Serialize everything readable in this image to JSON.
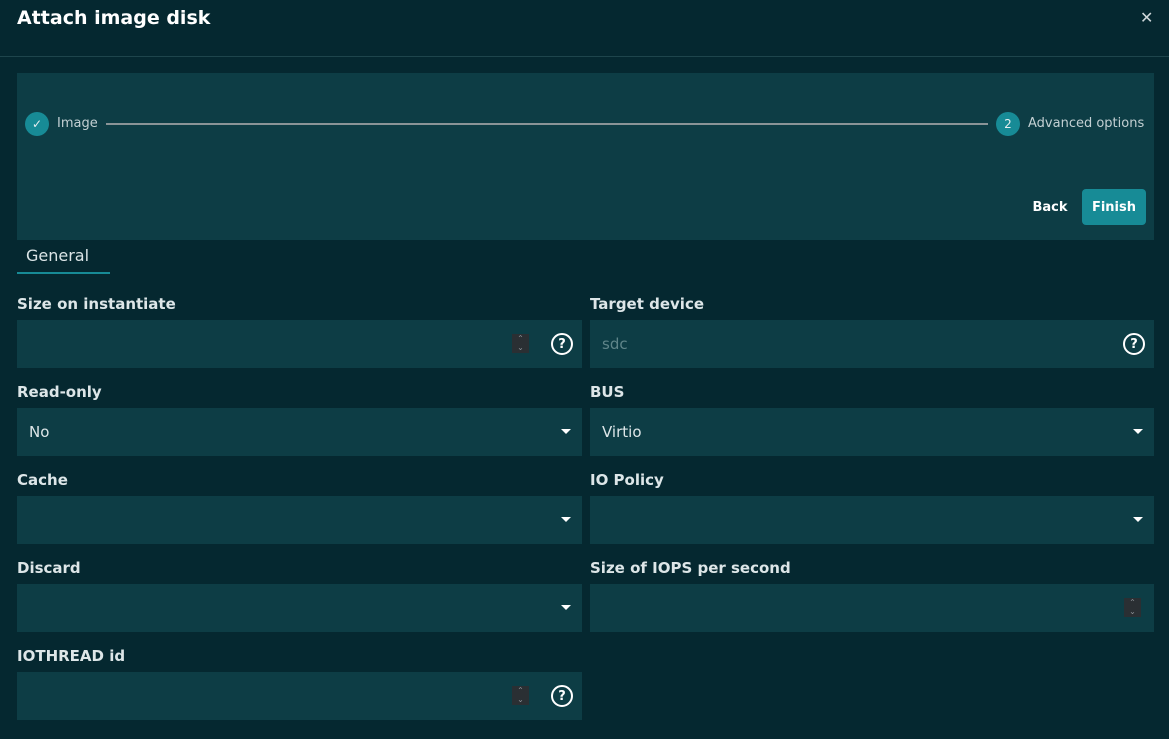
{
  "dialog": {
    "title": "Attach image disk",
    "close_icon": "close-icon"
  },
  "steps": [
    {
      "label": "Image",
      "state": "completed",
      "icon": "check-icon"
    },
    {
      "number": "2",
      "label": "Advanced options",
      "state": "active"
    }
  ],
  "buttons": {
    "back": "Back",
    "finish": "Finish"
  },
  "tabs": [
    {
      "label": "General",
      "active": true
    }
  ],
  "colors": {
    "accent": "#178b96",
    "background": "#052830",
    "panel": "#0d3d45"
  },
  "fields": {
    "size": {
      "label": "Size on instantiate",
      "value": ""
    },
    "target": {
      "label": "Target device",
      "placeholder": "sdc"
    },
    "readonly": {
      "label": "Read-only",
      "value": "No"
    },
    "bus": {
      "label": "BUS",
      "value": "Virtio"
    },
    "cache": {
      "label": "Cache",
      "value": ""
    },
    "io_policy": {
      "label": "IO Policy",
      "value": ""
    },
    "discard": {
      "label": "Discard",
      "value": ""
    },
    "iops": {
      "label": "Size of IOPS per second",
      "value": ""
    },
    "iothread": {
      "label": "IOTHREAD id",
      "value": ""
    }
  }
}
